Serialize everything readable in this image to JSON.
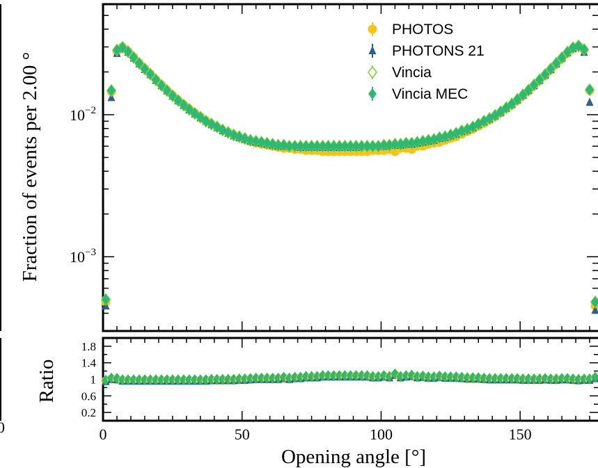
{
  "chart_data": [
    {
      "type": "scatter",
      "panel": "main",
      "ylabel": "Fraction of events per 2.00 °",
      "yscale": "log",
      "ylim": [
        0.0003,
        0.06
      ],
      "xlim": [
        0,
        178
      ],
      "yticks": [
        {
          "value": 0.01,
          "base": "10",
          "exp": "−2"
        },
        {
          "value": 0.001,
          "base": "10",
          "exp": "−3"
        }
      ],
      "legend_position": "top-right",
      "series": [
        {
          "name": "PHOTOS",
          "color": "#f5c518",
          "marker": "circle"
        },
        {
          "name": "PHOTONS 21",
          "color": "#2f5f8a",
          "marker": "triangle"
        },
        {
          "name": "Vincia",
          "color": "#8fd14f",
          "marker": "diamond-open"
        },
        {
          "name": "Vincia MEC",
          "color": "#2eb872",
          "marker": "diamond"
        }
      ],
      "points": {
        "x": [
          1,
          3,
          5,
          7,
          9,
          11,
          13,
          15,
          17,
          19,
          21,
          23,
          25,
          27,
          29,
          31,
          33,
          35,
          37,
          39,
          41,
          43,
          45,
          47,
          49,
          51,
          53,
          55,
          57,
          59,
          61,
          63,
          65,
          67,
          69,
          71,
          73,
          75,
          77,
          79,
          81,
          83,
          85,
          87,
          89,
          91,
          93,
          95,
          97,
          99,
          101,
          103,
          105,
          107,
          109,
          111,
          113,
          115,
          117,
          119,
          121,
          123,
          125,
          127,
          129,
          131,
          133,
          135,
          137,
          139,
          141,
          143,
          145,
          147,
          149,
          151,
          153,
          155,
          157,
          159,
          161,
          163,
          165,
          167,
          169,
          171,
          173,
          175,
          177
        ],
        "photos": [
          0.00048,
          0.0145,
          0.028,
          0.03,
          0.028,
          0.0255,
          0.0232,
          0.0212,
          0.0194,
          0.0177,
          0.0162,
          0.0149,
          0.0137,
          0.0127,
          0.0118,
          0.011,
          0.0103,
          0.0097,
          0.0091,
          0.0086,
          0.0082,
          0.0078,
          0.0075,
          0.0072,
          0.0069,
          0.0067,
          0.0065,
          0.0063,
          0.0062,
          0.0061,
          0.006,
          0.0059,
          0.0058,
          0.0058,
          0.0057,
          0.0057,
          0.0056,
          0.0056,
          0.0056,
          0.0055,
          0.0055,
          0.0055,
          0.0055,
          0.0055,
          0.0055,
          0.0055,
          0.0055,
          0.0055,
          0.0056,
          0.0056,
          0.0056,
          0.0057,
          0.0055,
          0.0058,
          0.0058,
          0.0057,
          0.006,
          0.006,
          0.0062,
          0.0063,
          0.0064,
          0.0066,
          0.0068,
          0.007,
          0.0073,
          0.0076,
          0.0079,
          0.0083,
          0.0087,
          0.0092,
          0.0097,
          0.0103,
          0.011,
          0.0117,
          0.0126,
          0.0136,
          0.0147,
          0.016,
          0.0174,
          0.0189,
          0.0207,
          0.0227,
          0.0248,
          0.0271,
          0.0293,
          0.0305,
          0.0285,
          0.0148,
          0.00045
        ],
        "photons": [
          0.00045,
          0.0132,
          0.027,
          0.029,
          0.0275,
          0.025,
          0.0228,
          0.0208,
          0.0191,
          0.0174,
          0.016,
          0.0147,
          0.0135,
          0.0125,
          0.0116,
          0.0108,
          0.0101,
          0.0095,
          0.009,
          0.0085,
          0.0081,
          0.0077,
          0.0074,
          0.0071,
          0.0069,
          0.0067,
          0.0065,
          0.0064,
          0.0063,
          0.0062,
          0.0061,
          0.006,
          0.006,
          0.006,
          0.006,
          0.0059,
          0.0059,
          0.0059,
          0.0059,
          0.0059,
          0.0059,
          0.0059,
          0.0059,
          0.0059,
          0.0059,
          0.0059,
          0.006,
          0.006,
          0.006,
          0.006,
          0.006,
          0.0061,
          0.0061,
          0.0061,
          0.0062,
          0.0062,
          0.0063,
          0.0064,
          0.0065,
          0.0066,
          0.0068,
          0.0069,
          0.0071,
          0.0073,
          0.0076,
          0.0078,
          0.0081,
          0.0085,
          0.0089,
          0.0093,
          0.0098,
          0.0104,
          0.0111,
          0.0118,
          0.0127,
          0.0137,
          0.0148,
          0.016,
          0.0174,
          0.019,
          0.0208,
          0.0228,
          0.025,
          0.0273,
          0.0292,
          0.03,
          0.0275,
          0.0122,
          0.00042
        ],
        "vincia": [
          0.0005,
          0.0148,
          0.0285,
          0.0298,
          0.0278,
          0.0253,
          0.023,
          0.021,
          0.0193,
          0.0176,
          0.0161,
          0.0148,
          0.0136,
          0.0126,
          0.0117,
          0.0109,
          0.0102,
          0.0096,
          0.009,
          0.0086,
          0.0082,
          0.0078,
          0.0075,
          0.0072,
          0.007,
          0.0068,
          0.0066,
          0.0065,
          0.0064,
          0.0063,
          0.0062,
          0.0061,
          0.0061,
          0.006,
          0.006,
          0.006,
          0.006,
          0.006,
          0.006,
          0.006,
          0.006,
          0.006,
          0.006,
          0.006,
          0.006,
          0.006,
          0.006,
          0.006,
          0.006,
          0.006,
          0.0061,
          0.0061,
          0.0062,
          0.0062,
          0.0063,
          0.0063,
          0.0064,
          0.0065,
          0.0066,
          0.0067,
          0.0069,
          0.007,
          0.0072,
          0.0074,
          0.0077,
          0.0079,
          0.0082,
          0.0086,
          0.009,
          0.0094,
          0.0099,
          0.0105,
          0.0112,
          0.0119,
          0.0128,
          0.0138,
          0.0149,
          0.0162,
          0.0176,
          0.0192,
          0.021,
          0.023,
          0.0252,
          0.0276,
          0.0296,
          0.0305,
          0.0288,
          0.015,
          0.00048
        ],
        "vincia_mec": [
          0.0005,
          0.0148,
          0.0285,
          0.0298,
          0.0278,
          0.0253,
          0.023,
          0.021,
          0.0193,
          0.0176,
          0.0161,
          0.0148,
          0.0136,
          0.0126,
          0.0117,
          0.0109,
          0.0102,
          0.0096,
          0.009,
          0.0086,
          0.0082,
          0.0078,
          0.0075,
          0.0072,
          0.007,
          0.0068,
          0.0066,
          0.0065,
          0.0064,
          0.0063,
          0.0062,
          0.0061,
          0.0061,
          0.006,
          0.006,
          0.006,
          0.006,
          0.006,
          0.006,
          0.006,
          0.006,
          0.006,
          0.006,
          0.006,
          0.006,
          0.006,
          0.006,
          0.006,
          0.006,
          0.006,
          0.0061,
          0.0061,
          0.0062,
          0.0062,
          0.0063,
          0.0063,
          0.0064,
          0.0065,
          0.0066,
          0.0067,
          0.0069,
          0.007,
          0.0072,
          0.0074,
          0.0077,
          0.0079,
          0.0082,
          0.0086,
          0.009,
          0.0094,
          0.0099,
          0.0105,
          0.0112,
          0.0119,
          0.0128,
          0.0138,
          0.0149,
          0.0162,
          0.0176,
          0.0192,
          0.021,
          0.023,
          0.0252,
          0.0276,
          0.0296,
          0.0305,
          0.0288,
          0.015,
          0.00048
        ]
      }
    },
    {
      "type": "scatter",
      "panel": "ratio",
      "ylabel": "Ratio",
      "ylim": [
        0,
        2
      ],
      "yticks": [
        "0.2",
        "0.6",
        "1",
        "1.4",
        "1.8"
      ],
      "xlabel": "Opening angle [°]",
      "xlim": [
        0,
        178
      ],
      "xticks": [
        "0",
        "50",
        "100",
        "150"
      ],
      "ratio_values": [
        0.98,
        1.03,
        1.02,
        0.99,
        0.99,
        0.99,
        0.99,
        0.99,
        0.99,
        0.99,
        0.99,
        0.99,
        0.99,
        0.99,
        0.99,
        0.99,
        0.99,
        0.99,
        0.99,
        1.0,
        1.0,
        1.0,
        1.0,
        1.0,
        1.01,
        1.01,
        1.02,
        1.03,
        1.03,
        1.03,
        1.03,
        1.03,
        1.05,
        1.03,
        1.05,
        1.05,
        1.07,
        1.07,
        1.07,
        1.09,
        1.09,
        1.09,
        1.09,
        1.09,
        1.09,
        1.09,
        1.09,
        1.09,
        1.07,
        1.07,
        1.09,
        1.07,
        1.13,
        1.07,
        1.09,
        1.1,
        1.07,
        1.08,
        1.06,
        1.06,
        1.08,
        1.06,
        1.06,
        1.06,
        1.05,
        1.04,
        1.04,
        1.04,
        1.03,
        1.02,
        1.02,
        1.02,
        1.02,
        1.02,
        1.02,
        1.01,
        1.01,
        1.01,
        1.01,
        1.02,
        1.01,
        1.01,
        1.02,
        1.02,
        1.01,
        1.0,
        1.01,
        1.01,
        1.05
      ]
    }
  ],
  "left_fragment_label": "0"
}
